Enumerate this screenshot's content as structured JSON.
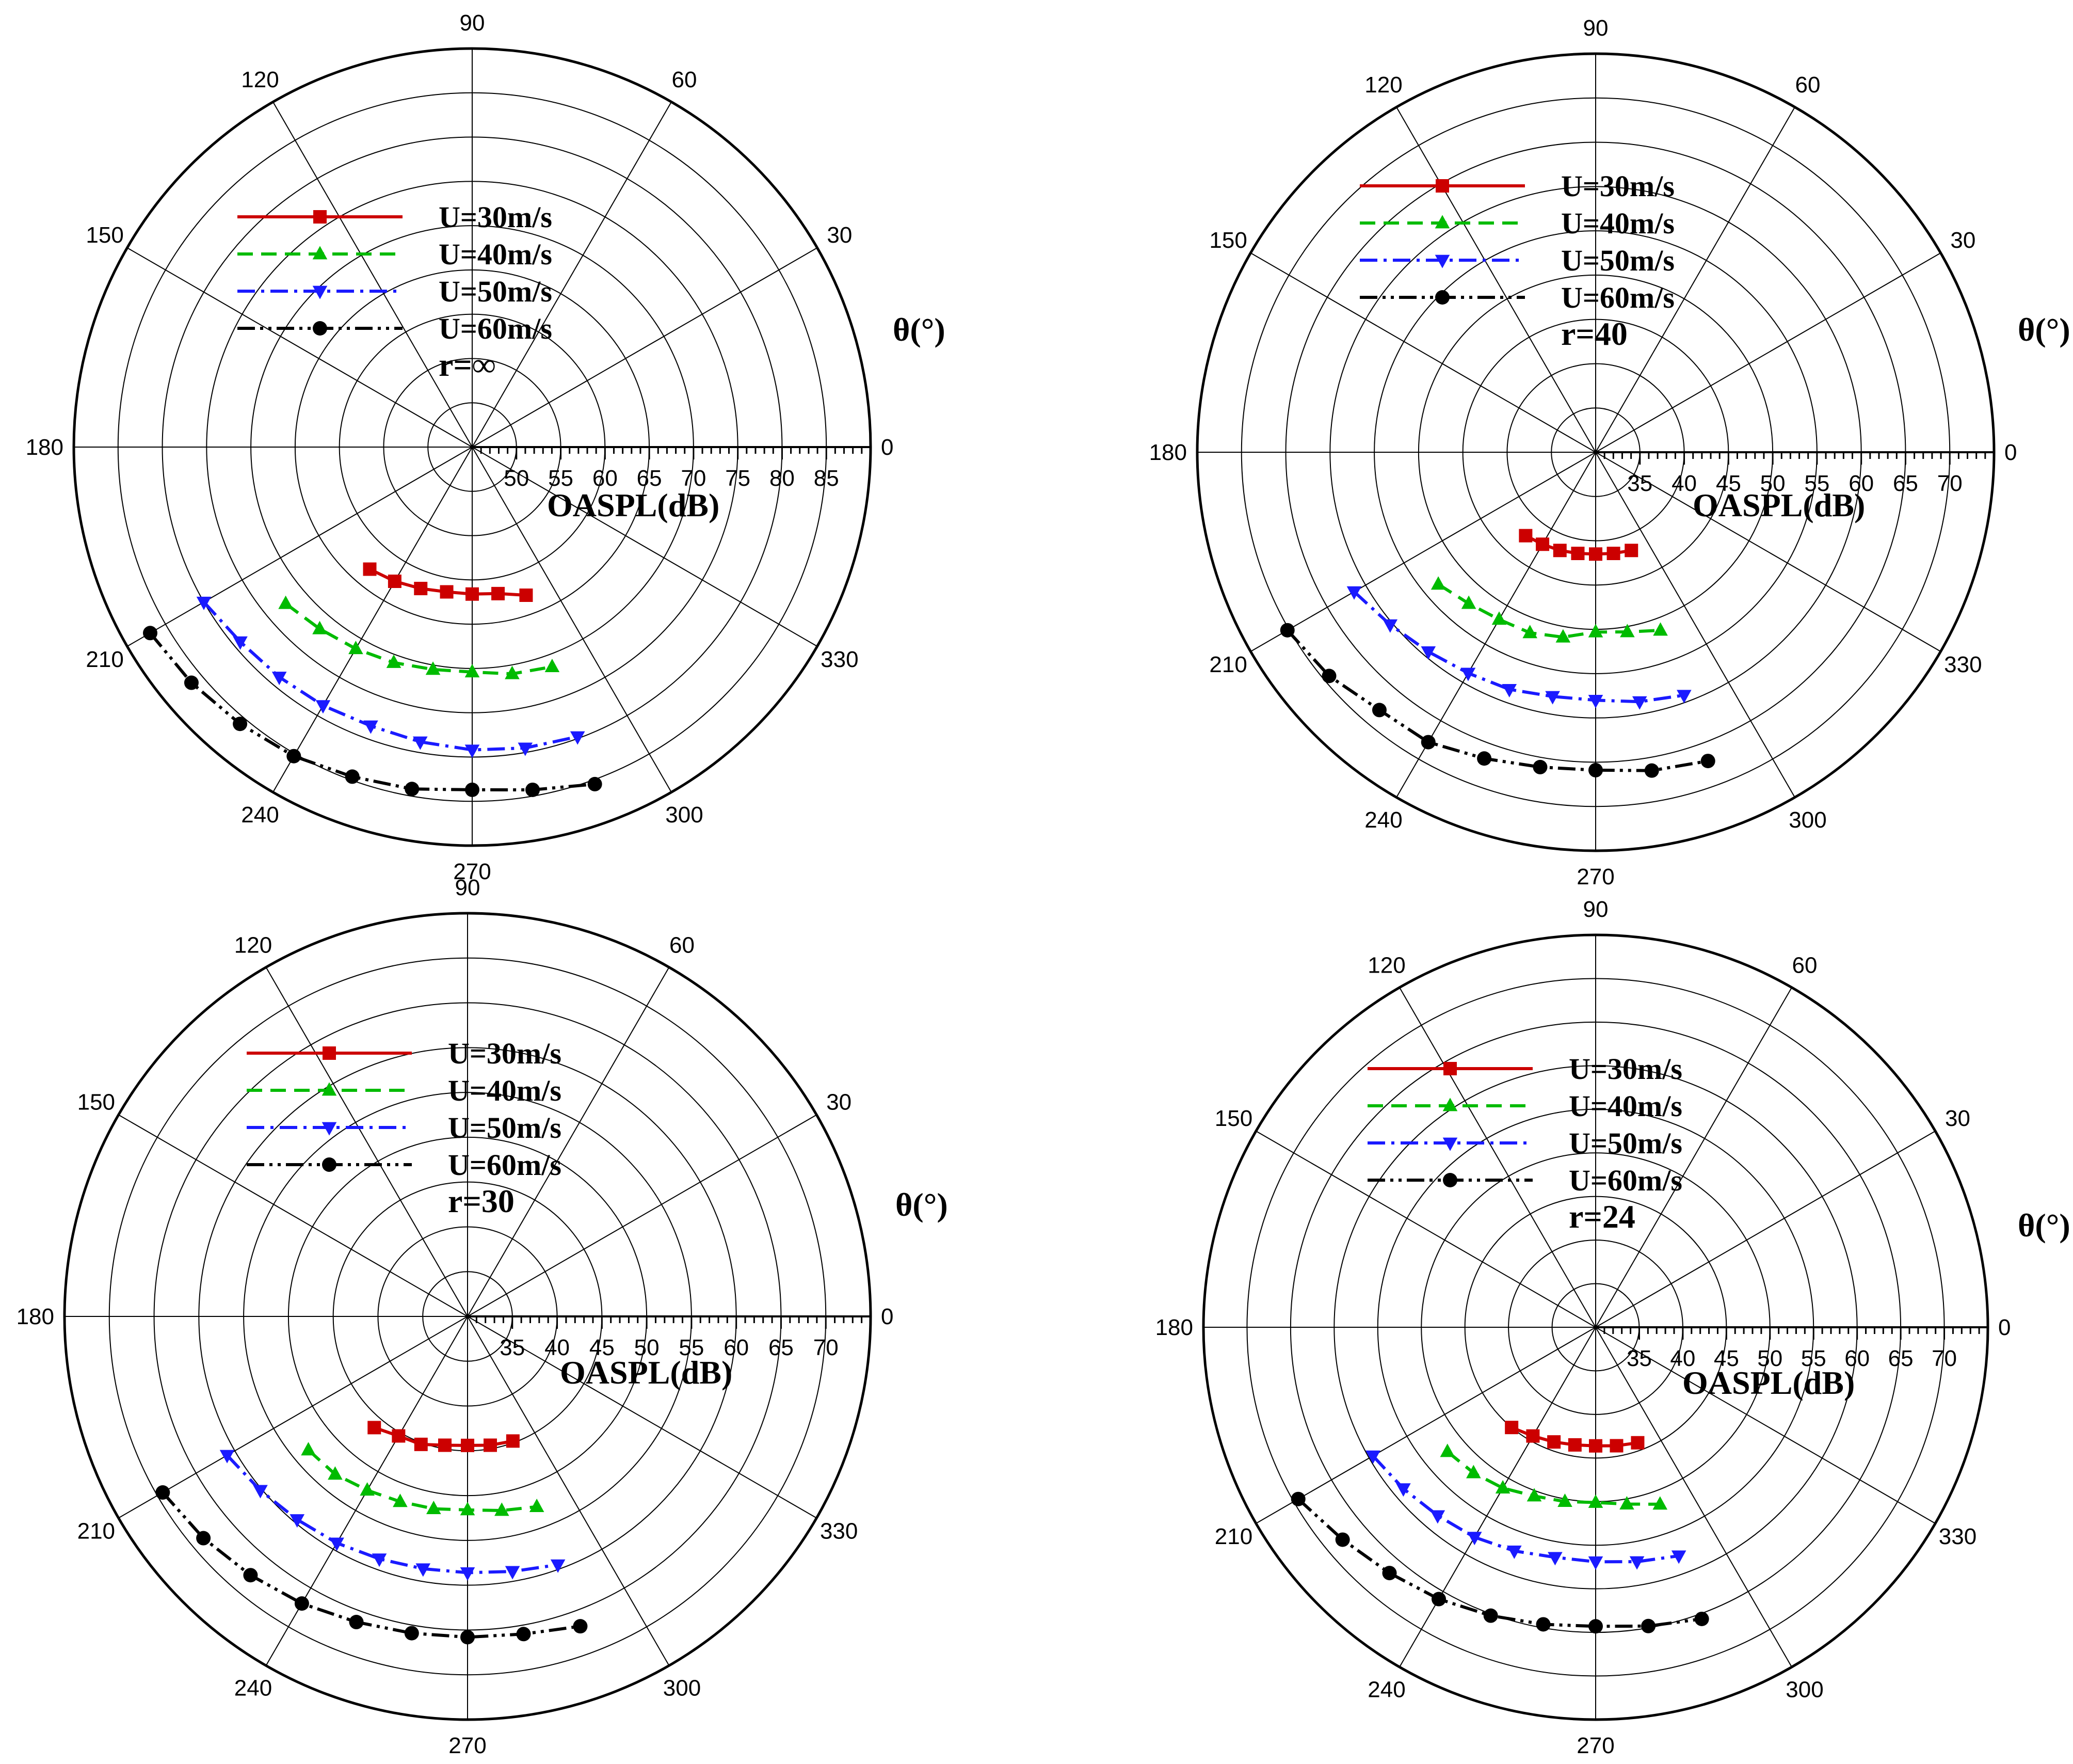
{
  "chart_data": [
    {
      "type": "polar-line",
      "angle_ticks": [
        "0",
        "30",
        "60",
        "90",
        "120",
        "150",
        "180",
        "210",
        "240",
        "270",
        "300",
        "330"
      ],
      "angle_label": "θ(°)",
      "radial_label": "OASPL(dB)",
      "radial_ticks": [
        "50",
        "55",
        "60",
        "65",
        "70",
        "75",
        "80",
        "85"
      ],
      "rlim": [
        45,
        90
      ],
      "annotation": "r=∞",
      "angles": [
        210,
        220,
        230,
        240,
        250,
        260,
        270,
        280,
        290
      ],
      "series": [
        {
          "name": "U=30m/s",
          "color": "#cc0000",
          "marker": "square",
          "dash": "solid",
          "start_angle": 230,
          "values": [
            63.0,
            62.5,
            62.0,
            61.6,
            61.6,
            61.8,
            62.8
          ]
        },
        {
          "name": "U=40m/s",
          "color": "#00bb00",
          "marker": "triangle-up",
          "dash": "dashed",
          "start_angle": 220,
          "values": [
            72.5,
            71.8,
            71.3,
            70.9,
            70.5,
            70.4,
            71.0,
            71.4
          ]
        },
        {
          "name": "U=50m/s",
          "color": "#1a1aff",
          "marker": "triangle-down",
          "dash": "dashdot",
          "start_angle": 210,
          "values": [
            80.0,
            79.2,
            78.9,
            78.7,
            78.5,
            78.8,
            79.2,
            79.5,
            79.8
          ]
        },
        {
          "name": "U=60m/s",
          "color": "#000000",
          "marker": "circle",
          "dash": "dashdotdot",
          "start_angle": 210,
          "values": [
            87.0,
            86.4,
            85.8,
            85.3,
            84.6,
            84.2,
            83.7,
            84.3,
            85.5
          ]
        }
      ]
    },
    {
      "type": "polar-line",
      "angle_ticks": [
        "0",
        "30",
        "60",
        "90",
        "120",
        "150",
        "180",
        "210",
        "240",
        "270",
        "300",
        "330"
      ],
      "angle_label": "θ(°)",
      "radial_label": "OASPL(dB)",
      "radial_ticks": [
        "35",
        "40",
        "45",
        "50",
        "55",
        "60",
        "65",
        "70"
      ],
      "rlim": [
        30,
        75
      ],
      "annotation": "r=40",
      "angles": [
        210,
        220,
        230,
        240,
        250,
        260,
        270,
        280,
        290
      ],
      "series": [
        {
          "name": "U=30m/s",
          "color": "#cc0000",
          "marker": "square",
          "dash": "solid",
          "start_angle": 230,
          "values": [
            42.3,
            42.0,
            41.8,
            41.6,
            41.5,
            41.6,
            41.8
          ]
        },
        {
          "name": "U=40m/s",
          "color": "#00bb00",
          "marker": "triangle-up",
          "dash": "dashed",
          "start_angle": 220,
          "values": [
            53.2,
            52.3,
            51.8,
            51.7,
            51.2,
            50.3,
            50.6,
            51.4
          ]
        },
        {
          "name": "U=50m/s",
          "color": "#1a1aff",
          "marker": "triangle-down",
          "dash": "dashdot",
          "start_angle": 210,
          "values": [
            61.5,
            60.3,
            59.4,
            58.8,
            58.5,
            58.0,
            58.0,
            58.6,
            59.2
          ]
        },
        {
          "name": "U=60m/s",
          "color": "#000000",
          "marker": "circle",
          "dash": "dashdotdot",
          "start_angle": 210,
          "values": [
            70.2,
            69.3,
            68.0,
            67.8,
            66.8,
            66.1,
            65.9,
            66.5,
            67.1
          ]
        }
      ]
    },
    {
      "type": "polar-line",
      "angle_ticks": [
        "0",
        "30",
        "60",
        "90",
        "120",
        "150",
        "180",
        "210",
        "240",
        "270",
        "300",
        "330"
      ],
      "angle_label": "θ(°)",
      "radial_label": "OASPL(dB)",
      "radial_ticks": [
        "35",
        "40",
        "45",
        "50",
        "55",
        "60",
        "65",
        "70"
      ],
      "rlim": [
        30,
        75
      ],
      "annotation": "r=30",
      "angles": [
        210,
        220,
        230,
        240,
        250,
        260,
        270,
        280,
        290
      ],
      "series": [
        {
          "name": "U=30m/s",
          "color": "#cc0000",
          "marker": "square",
          "dash": "solid",
          "start_angle": 230,
          "values": [
            46.2,
            45.4,
            45.2,
            44.6,
            44.4,
            44.6,
            44.8
          ]
        },
        {
          "name": "U=40m/s",
          "color": "#00bb00",
          "marker": "triangle-up",
          "dash": "dashed",
          "start_angle": 220,
          "values": [
            53.2,
            53.0,
            52.4,
            52.0,
            51.8,
            51.6,
            52.0,
            52.6
          ]
        },
        {
          "name": "U=50m/s",
          "color": "#1a1aff",
          "marker": "triangle-down",
          "dash": "dashdot",
          "start_angle": 210,
          "values": [
            61.0,
            60.2,
            59.6,
            59.2,
            58.8,
            58.6,
            58.6,
            58.9,
            59.5
          ]
        },
        {
          "name": "U=60m/s",
          "color": "#000000",
          "marker": "circle",
          "dash": "dashdotdot",
          "start_angle": 210,
          "values": [
            69.3,
            68.5,
            67.7,
            67.0,
            66.3,
            65.9,
            65.8,
            66.0,
            66.8
          ]
        }
      ]
    },
    {
      "type": "polar-line",
      "angle_ticks": [
        "0",
        "30",
        "60",
        "90",
        "120",
        "150",
        "180",
        "210",
        "240",
        "270",
        "300",
        "330"
      ],
      "angle_label": "θ(°)",
      "radial_label": "OASPL(dB)",
      "radial_ticks": [
        "35",
        "40",
        "45",
        "50",
        "55",
        "60",
        "65",
        "70"
      ],
      "rlim": [
        30,
        75
      ],
      "annotation": "r=24",
      "angles": [
        210,
        220,
        230,
        240,
        250,
        260,
        270,
        280,
        290
      ],
      "series": [
        {
          "name": "U=30m/s",
          "color": "#cc0000",
          "marker": "square",
          "dash": "solid",
          "start_angle": 230,
          "values": [
            45.0,
            44.4,
            44.0,
            43.7,
            43.6,
            43.8,
            44.1
          ]
        },
        {
          "name": "U=40m/s",
          "color": "#00bb00",
          "marker": "triangle-up",
          "dash": "dashed",
          "start_angle": 220,
          "values": [
            52.2,
            51.8,
            51.3,
            50.6,
            50.3,
            50.1,
            50.6,
            51.6
          ]
        },
        {
          "name": "U=50m/s",
          "color": "#1a1aff",
          "marker": "triangle-down",
          "dash": "dashdot",
          "start_angle": 210,
          "values": [
            59.5,
            58.8,
            58.2,
            57.8,
            57.3,
            56.8,
            56.9,
            57.3,
            57.9
          ]
        },
        {
          "name": "U=60m/s",
          "color": "#000000",
          "marker": "circle",
          "dash": "dashdotdot",
          "start_angle": 210,
          "values": [
            69.4,
            67.9,
            66.8,
            66.0,
            65.2,
            64.6,
            64.3,
            64.8,
            65.6
          ]
        }
      ]
    }
  ]
}
